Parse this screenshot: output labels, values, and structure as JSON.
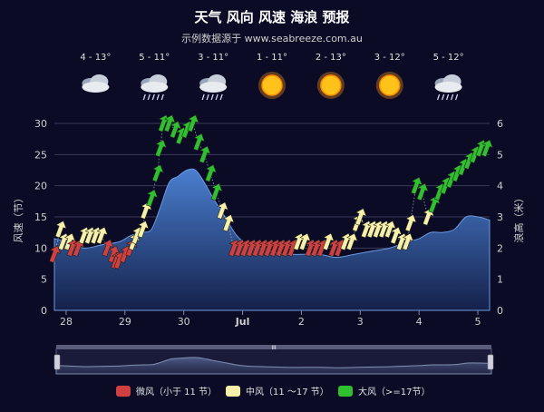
{
  "chart_data": {
    "type": "area",
    "title": "天气 风向 风速 海浪 预报",
    "subtitle": "示例数据源于 www.seabreeze.com.au",
    "ylabel_left": "风速（节）",
    "ylabel_right": "浪高（米）",
    "ylim_left": [
      0,
      30
    ],
    "ylim_right": [
      0,
      6
    ],
    "yticks_left": [
      "0",
      "5",
      "10",
      "15",
      "20",
      "25",
      "30"
    ],
    "yticks_right": [
      "0",
      "1",
      "2",
      "3",
      "4",
      "5",
      "6"
    ],
    "xlim": [
      -0.2,
      7.2
    ],
    "xticks": [
      {
        "x": 0,
        "label": "28"
      },
      {
        "x": 1,
        "label": "29"
      },
      {
        "x": 2,
        "label": "30"
      },
      {
        "x": 3,
        "label": "Jul"
      },
      {
        "x": 4,
        "label": "2"
      },
      {
        "x": 5,
        "label": "3"
      },
      {
        "x": 6,
        "label": "4"
      },
      {
        "x": 7,
        "label": "5"
      }
    ],
    "grid": true,
    "legend_position": "bottom",
    "weather": [
      {
        "day": 0,
        "temp": "4 - 13°",
        "icon": "cloudy-icon"
      },
      {
        "day": 1,
        "temp": "5 - 11°",
        "icon": "rain-icon"
      },
      {
        "day": 2,
        "temp": "3 - 11°",
        "icon": "rain-icon"
      },
      {
        "day": 3,
        "temp": "1 - 11°",
        "icon": "sun-icon"
      },
      {
        "day": 4,
        "temp": "2 - 13°",
        "icon": "sun-icon"
      },
      {
        "day": 5,
        "temp": "3 - 12°",
        "icon": "sun-icon"
      },
      {
        "day": 6,
        "temp": "5 - 12°",
        "icon": "rain-icon"
      }
    ],
    "wave_height": {
      "x": [
        -0.2,
        0.0,
        0.3,
        0.6,
        0.9,
        1.1,
        1.3,
        1.45,
        1.6,
        1.75,
        1.9,
        2.05,
        2.2,
        2.35,
        2.5,
        2.7,
        2.9,
        3.1,
        3.3,
        3.5,
        3.7,
        4.0,
        4.3,
        4.6,
        4.9,
        5.2,
        5.5,
        5.8,
        6.0,
        6.2,
        6.4,
        6.6,
        6.8,
        7.0,
        7.2
      ],
      "y": [
        2.3,
        2.2,
        2.0,
        2.1,
        2.2,
        2.4,
        2.5,
        2.6,
        3.3,
        4.1,
        4.3,
        4.5,
        4.5,
        4.1,
        3.6,
        3.0,
        2.4,
        2.1,
        2.0,
        1.9,
        1.8,
        1.8,
        1.8,
        1.7,
        1.8,
        1.9,
        2.0,
        2.2,
        2.3,
        2.5,
        2.5,
        2.6,
        3.0,
        3.0,
        2.9
      ]
    },
    "wind": [
      {
        "x": -0.2,
        "speed": 9,
        "dir": 20
      },
      {
        "x": -0.1,
        "speed": 13,
        "dir": 20
      },
      {
        "x": -0.05,
        "speed": 11,
        "dir": 20
      },
      {
        "x": 0.05,
        "speed": 11,
        "dir": 20
      },
      {
        "x": 0.1,
        "speed": 10,
        "dir": 20
      },
      {
        "x": 0.2,
        "speed": 10,
        "dir": 20
      },
      {
        "x": 0.3,
        "speed": 12,
        "dir": 20
      },
      {
        "x": 0.4,
        "speed": 12,
        "dir": 20
      },
      {
        "x": 0.5,
        "speed": 12,
        "dir": 20
      },
      {
        "x": 0.6,
        "speed": 12,
        "dir": 20
      },
      {
        "x": 0.7,
        "speed": 10,
        "dir": 20
      },
      {
        "x": 0.8,
        "speed": 9,
        "dir": 20
      },
      {
        "x": 0.85,
        "speed": 8,
        "dir": 20
      },
      {
        "x": 0.9,
        "speed": 8,
        "dir": 20
      },
      {
        "x": 1.0,
        "speed": 9,
        "dir": 20
      },
      {
        "x": 1.1,
        "speed": 10,
        "dir": 20
      },
      {
        "x": 1.15,
        "speed": 11,
        "dir": 20
      },
      {
        "x": 1.2,
        "speed": 12,
        "dir": 20
      },
      {
        "x": 1.3,
        "speed": 13,
        "dir": 20
      },
      {
        "x": 1.35,
        "speed": 16,
        "dir": 20
      },
      {
        "x": 1.45,
        "speed": 18,
        "dir": 20
      },
      {
        "x": 1.55,
        "speed": 22,
        "dir": 20
      },
      {
        "x": 1.6,
        "speed": 26,
        "dir": 20
      },
      {
        "x": 1.65,
        "speed": 30,
        "dir": 20
      },
      {
        "x": 1.75,
        "speed": 30,
        "dir": 20
      },
      {
        "x": 1.85,
        "speed": 29,
        "dir": 20
      },
      {
        "x": 1.95,
        "speed": 28,
        "dir": 20
      },
      {
        "x": 2.05,
        "speed": 29,
        "dir": 20
      },
      {
        "x": 2.15,
        "speed": 30,
        "dir": 20
      },
      {
        "x": 2.25,
        "speed": 27,
        "dir": 20
      },
      {
        "x": 2.35,
        "speed": 25,
        "dir": 20
      },
      {
        "x": 2.45,
        "speed": 22,
        "dir": 20
      },
      {
        "x": 2.55,
        "speed": 19,
        "dir": 20
      },
      {
        "x": 2.65,
        "speed": 16,
        "dir": 20
      },
      {
        "x": 2.75,
        "speed": 14,
        "dir": 20
      },
      {
        "x": 2.85,
        "speed": 10,
        "dir": 20
      },
      {
        "x": 2.95,
        "speed": 10,
        "dir": 20
      },
      {
        "x": 3.05,
        "speed": 10,
        "dir": 20
      },
      {
        "x": 3.15,
        "speed": 10,
        "dir": 20
      },
      {
        "x": 3.25,
        "speed": 10,
        "dir": 20
      },
      {
        "x": 3.35,
        "speed": 10,
        "dir": 20
      },
      {
        "x": 3.45,
        "speed": 10,
        "dir": 20
      },
      {
        "x": 3.55,
        "speed": 10,
        "dir": 20
      },
      {
        "x": 3.65,
        "speed": 10,
        "dir": 20
      },
      {
        "x": 3.75,
        "speed": 10,
        "dir": 20
      },
      {
        "x": 3.85,
        "speed": 10,
        "dir": 20
      },
      {
        "x": 3.95,
        "speed": 11,
        "dir": 20
      },
      {
        "x": 4.05,
        "speed": 11,
        "dir": 20
      },
      {
        "x": 4.15,
        "speed": 10,
        "dir": 20
      },
      {
        "x": 4.25,
        "speed": 10,
        "dir": 20
      },
      {
        "x": 4.35,
        "speed": 10,
        "dir": 20
      },
      {
        "x": 4.45,
        "speed": 11,
        "dir": 20
      },
      {
        "x": 4.55,
        "speed": 10,
        "dir": 20
      },
      {
        "x": 4.65,
        "speed": 10,
        "dir": 20
      },
      {
        "x": 4.75,
        "speed": 11,
        "dir": 20
      },
      {
        "x": 4.85,
        "speed": 11,
        "dir": 20
      },
      {
        "x": 4.95,
        "speed": 14,
        "dir": 20
      },
      {
        "x": 5.0,
        "speed": 15,
        "dir": 20
      },
      {
        "x": 5.1,
        "speed": 13,
        "dir": 20
      },
      {
        "x": 5.2,
        "speed": 13,
        "dir": 20
      },
      {
        "x": 5.3,
        "speed": 13,
        "dir": 20
      },
      {
        "x": 5.4,
        "speed": 13,
        "dir": 20
      },
      {
        "x": 5.5,
        "speed": 13,
        "dir": 20
      },
      {
        "x": 5.6,
        "speed": 12,
        "dir": 20
      },
      {
        "x": 5.7,
        "speed": 11,
        "dir": 20
      },
      {
        "x": 5.8,
        "speed": 11,
        "dir": 20
      },
      {
        "x": 5.85,
        "speed": 14,
        "dir": 20
      },
      {
        "x": 5.95,
        "speed": 20,
        "dir": 20
      },
      {
        "x": 6.05,
        "speed": 19,
        "dir": 20
      },
      {
        "x": 6.15,
        "speed": 15,
        "dir": 20
      },
      {
        "x": 6.25,
        "speed": 17,
        "dir": 20
      },
      {
        "x": 6.35,
        "speed": 19,
        "dir": 20
      },
      {
        "x": 6.45,
        "speed": 20,
        "dir": 20
      },
      {
        "x": 6.55,
        "speed": 21,
        "dir": 20
      },
      {
        "x": 6.65,
        "speed": 22,
        "dir": 20
      },
      {
        "x": 6.75,
        "speed": 23,
        "dir": 20
      },
      {
        "x": 6.85,
        "speed": 24,
        "dir": 20
      },
      {
        "x": 6.95,
        "speed": 25,
        "dir": 20
      },
      {
        "x": 7.05,
        "speed": 26,
        "dir": 20
      },
      {
        "x": 7.15,
        "speed": 26,
        "dir": 20
      }
    ],
    "legend": [
      {
        "label": "微风（小于 11 节）",
        "color": "#d04040"
      },
      {
        "label": "中风（11 ～17 节）",
        "color": "#f7f0a8"
      },
      {
        "label": "大风（>=17节）",
        "color": "#2fbf2f"
      }
    ]
  },
  "colors": {
    "background": "#0b0b26",
    "wave_top": "#4a7fd0",
    "wave_bottom": "#14214a",
    "grid": "#3a3a5a",
    "calm": "#d04040",
    "moderate": "#f7f0a8",
    "strong": "#2fbf2f"
  },
  "navigator": {
    "handle_label": "III"
  }
}
